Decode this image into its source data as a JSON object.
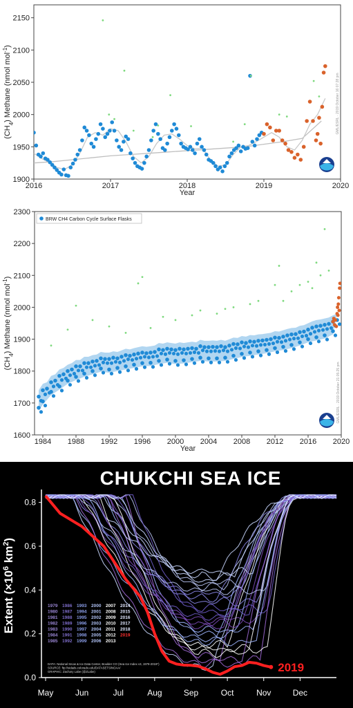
{
  "chart_data": [
    {
      "type": "scatter",
      "xlabel": "Year",
      "ylabel": "(CH4) Methane (nmol mol-1)",
      "ylabel_parts": {
        "pre": "(CH",
        "sub": "4",
        "mid": ") Methane (nmol mol",
        "sup": "-1",
        "post": ")"
      },
      "xlim": [
        2016,
        2020
      ],
      "ylim": [
        1900,
        2170
      ],
      "x_ticks": [
        "2016",
        "2017",
        "2018",
        "2019",
        "2020"
      ],
      "y_ticks": [
        "1900",
        "1950",
        "2000",
        "2050",
        "2100",
        "2150"
      ],
      "watermark": "GML/ESRL · 2019 October 16 07:28 pm",
      "series": [
        {
          "role": "flask_blue",
          "color": "#1f8ad6",
          "x": [
            2016.0,
            2016.03,
            2016.06,
            2016.09,
            2016.12,
            2016.15,
            2016.18,
            2016.21,
            2016.24,
            2016.27,
            2016.3,
            2016.33,
            2016.36,
            2016.39,
            2016.42,
            2016.45,
            2016.48,
            2016.51,
            2016.54,
            2016.57,
            2016.6,
            2016.63,
            2016.66,
            2016.69,
            2016.72,
            2016.75,
            2016.78,
            2016.81,
            2016.84,
            2016.87,
            2016.9,
            2016.93,
            2016.96,
            2016.99,
            2017.02,
            2017.05,
            2017.08,
            2017.11,
            2017.14,
            2017.17,
            2017.2,
            2017.23,
            2017.26,
            2017.29,
            2017.32,
            2017.35,
            2017.38,
            2017.41,
            2017.44,
            2017.47,
            2017.5,
            2017.53,
            2017.56,
            2017.59,
            2017.62,
            2017.65,
            2017.68,
            2017.71,
            2017.74,
            2017.77,
            2017.8,
            2017.83,
            2017.86,
            2017.89,
            2017.92,
            2017.95,
            2017.98,
            2018.01,
            2018.04,
            2018.07,
            2018.1,
            2018.13,
            2018.16,
            2018.19,
            2018.22,
            2018.25,
            2018.28,
            2018.31,
            2018.34,
            2018.37,
            2018.4,
            2018.43,
            2018.46,
            2018.49,
            2018.52,
            2018.55,
            2018.58,
            2018.61,
            2018.64,
            2018.67,
            2018.7,
            2018.73,
            2018.76,
            2018.79,
            2018.82,
            2018.85,
            2018.88,
            2018.91,
            2018.94,
            2018.97
          ],
          "y": [
            1972,
            1952,
            1938,
            1935,
            1940,
            1932,
            1930,
            1926,
            1922,
            1918,
            1914,
            1910,
            1907,
            1915,
            1906,
            1905,
            1918,
            1924,
            1930,
            1938,
            1945,
            1960,
            1980,
            1975,
            1968,
            1955,
            1950,
            1962,
            1970,
            1985,
            1978,
            1965,
            1970,
            1975,
            1988,
            1975,
            1960,
            1950,
            1945,
            1958,
            1966,
            1962,
            1940,
            1932,
            1925,
            1920,
            1918,
            1916,
            1925,
            1935,
            1945,
            1960,
            1975,
            1985,
            1970,
            1962,
            1948,
            1945,
            1955,
            1965,
            1975,
            1985,
            1978,
            1968,
            1955,
            1950,
            1948,
            1946,
            1950,
            1945,
            1940,
            1955,
            1962,
            1950,
            1945,
            1938,
            1930,
            1928,
            1925,
            1920,
            1915,
            1918,
            1912,
            1920,
            1925,
            1935,
            1940,
            1945,
            1948,
            1952,
            1943,
            1950,
            1947,
            1948,
            2060,
            1958,
            1952,
            1962,
            1968,
            1972
          ]
        },
        {
          "role": "outlier_green",
          "color": "#7fd97f",
          "x": [
            2016.9,
            2016.98,
            2017.05,
            2017.18,
            2017.3,
            2017.55,
            2017.62,
            2017.78,
            2018.05,
            2018.6,
            2018.75,
            2018.83,
            2019.2,
            2019.3,
            2019.65,
            2019.72
          ],
          "y": [
            2146,
            2000,
            1993,
            2068,
            1975,
            1965,
            1983,
            2030,
            1982,
            1958,
            1985,
            2060,
            2000,
            1997,
            2052,
            2028
          ]
        },
        {
          "role": "recent_orange",
          "color": "#d9622b",
          "x": [
            2019.0,
            2019.04,
            2019.08,
            2019.12,
            2019.16,
            2019.2,
            2019.24,
            2019.28,
            2019.32,
            2019.36,
            2019.4,
            2019.44,
            2019.48,
            2019.52,
            2019.56,
            2019.6,
            2019.64,
            2019.68,
            2019.7,
            2019.72,
            2019.74,
            2019.76,
            2019.78,
            2019.8
          ],
          "y": [
            1970,
            1985,
            1980,
            1960,
            1975,
            1975,
            1960,
            1955,
            1945,
            1942,
            1933,
            1938,
            1930,
            1950,
            1990,
            2020,
            1990,
            1960,
            1970,
            1995,
            1955,
            2012,
            2065,
            2075
          ]
        },
        {
          "role": "trend_line",
          "color": "#bfbfbf",
          "x": [
            2016,
            2016.25,
            2016.5,
            2016.75,
            2017,
            2017.25,
            2017.5,
            2017.75,
            2018,
            2018.25,
            2018.5,
            2018.75,
            2019,
            2019.25,
            2019.5,
            2019.75
          ],
          "y": [
            1925,
            1927,
            1930,
            1933,
            1936,
            1938,
            1940,
            1942,
            1944,
            1946,
            1948,
            1950,
            1954,
            1958,
            1963,
            1990
          ]
        },
        {
          "role": "smooth_fit",
          "color": "#c8c8c8",
          "x": [
            2016,
            2016.1,
            2016.2,
            2016.3,
            2016.4,
            2016.5,
            2016.6,
            2016.7,
            2016.8,
            2016.9,
            2017,
            2017.1,
            2017.2,
            2017.3,
            2017.4,
            2017.5,
            2017.6,
            2017.7,
            2017.8,
            2017.9,
            2018,
            2018.1,
            2018.2,
            2018.3,
            2018.4,
            2018.5,
            2018.6,
            2018.7,
            2018.8,
            2018.9,
            2019,
            2019.1,
            2019.2,
            2019.3,
            2019.4,
            2019.5,
            2019.6,
            2019.7,
            2019.8
          ],
          "y": [
            1940,
            1932,
            1926,
            1918,
            1915,
            1922,
            1940,
            1965,
            1972,
            1968,
            1978,
            1975,
            1958,
            1935,
            1925,
            1935,
            1955,
            1968,
            1970,
            1962,
            1952,
            1947,
            1948,
            1930,
            1920,
            1922,
            1938,
            1950,
            1952,
            1958,
            1965,
            1972,
            1965,
            1950,
            1945,
            1960,
            1985,
            2000,
            2025
          ]
        }
      ]
    },
    {
      "type": "scatter",
      "xlabel": "Year",
      "ylabel": "(CH4) Methane (nmol mol-1)",
      "ylabel_parts": {
        "pre": "(CH",
        "sub": "4",
        "mid": ") Methane (nmol mol",
        "sup": "-1",
        "post": ")"
      },
      "legend": "BRW CH4 Carbon Cycle Surface Flasks",
      "legend_placement": "top-left",
      "xlim": [
        1983,
        2020
      ],
      "ylim": [
        1600,
        2300
      ],
      "x_ticks": [
        "1984",
        "1988",
        "1992",
        "1996",
        "2000",
        "2004",
        "2008",
        "2012",
        "2016",
        "2020"
      ],
      "y_ticks": [
        "1600",
        "1700",
        "1800",
        "1900",
        "2000",
        "2100",
        "2200",
        "2300"
      ],
      "watermark": "GML/ESRL · 2019 October 21 05:25 pm",
      "series": [
        {
          "role": "flask_blue",
          "color": "#1f8ad6",
          "x": [
            1983.5,
            1984,
            1984.5,
            1985,
            1985.5,
            1986,
            1986.5,
            1987,
            1987.5,
            1988,
            1988.5,
            1989,
            1989.5,
            1990,
            1990.5,
            1991,
            1991.5,
            1992,
            1992.5,
            1993,
            1993.5,
            1994,
            1994.5,
            1995,
            1995.5,
            1996,
            1996.5,
            1997,
            1997.5,
            1998,
            1998.5,
            1999,
            1999.5,
            2000,
            2000.5,
            2001,
            2001.5,
            2002,
            2002.5,
            2003,
            2003.5,
            2004,
            2004.5,
            2005,
            2005.5,
            2006,
            2006.5,
            2007,
            2007.5,
            2008,
            2008.5,
            2009,
            2009.5,
            2010,
            2010.5,
            2011,
            2011.5,
            2012,
            2012.5,
            2013,
            2013.5,
            2014,
            2014.5,
            2015,
            2015.5,
            2016,
            2016.5,
            2017,
            2017.5,
            2018,
            2018.5,
            2019,
            2019.5
          ],
          "y": [
            1720,
            1740,
            1745,
            1765,
            1770,
            1785,
            1790,
            1800,
            1805,
            1815,
            1815,
            1825,
            1825,
            1830,
            1832,
            1840,
            1838,
            1838,
            1842,
            1840,
            1845,
            1850,
            1848,
            1852,
            1855,
            1858,
            1856,
            1858,
            1860,
            1868,
            1866,
            1870,
            1868,
            1866,
            1870,
            1868,
            1870,
            1872,
            1870,
            1878,
            1875,
            1875,
            1876,
            1875,
            1878,
            1875,
            1880,
            1885,
            1884,
            1890,
            1888,
            1893,
            1892,
            1895,
            1896,
            1898,
            1900,
            1905,
            1904,
            1908,
            1912,
            1915,
            1916,
            1922,
            1924,
            1930,
            1936,
            1940,
            1942,
            1945,
            1948,
            1955,
            1960
          ]
        },
        {
          "role": "flask_blue_low",
          "color": "#1f8ad6",
          "x": [
            1983.5,
            1984,
            1985,
            1986,
            1987,
            1988,
            1989,
            1990,
            1991,
            1992,
            1993,
            1994,
            1995,
            1996,
            1997,
            1998,
            1999,
            2000,
            2001,
            2002,
            2003,
            2004,
            2005,
            2006,
            2007,
            2008,
            2009,
            2010,
            2011,
            2012,
            2013,
            2014,
            2015,
            2016,
            2017,
            2018,
            2019
          ],
          "y": [
            1685,
            1705,
            1735,
            1752,
            1770,
            1782,
            1792,
            1800,
            1808,
            1805,
            1810,
            1815,
            1820,
            1825,
            1826,
            1832,
            1836,
            1832,
            1834,
            1838,
            1842,
            1840,
            1840,
            1842,
            1848,
            1854,
            1858,
            1862,
            1866,
            1872,
            1876,
            1882,
            1890,
            1900,
            1906,
            1912,
            1925
          ]
        },
        {
          "role": "outlier_green",
          "color": "#7fd97f",
          "x": [
            1985,
            1987,
            1988,
            1990,
            1992,
            1994,
            1995.5,
            1996,
            1997,
            1998.5,
            2000,
            2002,
            2003,
            2005,
            2006,
            2007,
            2009,
            2010,
            2012,
            2012.5,
            2013,
            2014,
            2015,
            2016,
            2016.5,
            2017,
            2017.5,
            2018,
            2018.5
          ],
          "y": [
            1880,
            1930,
            2005,
            1960,
            1940,
            1920,
            2075,
            2095,
            1935,
            1970,
            1960,
            1975,
            1990,
            1980,
            1995,
            2000,
            2010,
            2020,
            2070,
            2130,
            2020,
            2050,
            2070,
            2080,
            2060,
            2140,
            2100,
            2245,
            2115
          ]
        },
        {
          "role": "recent_orange",
          "color": "#d9622b",
          "x": [
            2019.0,
            2019.1,
            2019.2,
            2019.3,
            2019.4,
            2019.5,
            2019.55,
            2019.6,
            2019.65,
            2019.7,
            2019.75,
            2019.8,
            2019.85
          ],
          "y": [
            1955,
            1965,
            1945,
            1960,
            1940,
            1980,
            2000,
            1975,
            2010,
            2030,
            1990,
            2060,
            2075
          ]
        }
      ]
    },
    {
      "type": "line",
      "title": "CHUKCHI SEA ICE",
      "ylabel": "Extent (×10^6 km^2)",
      "ylabel_parts": {
        "pre": "Extent (×10",
        "sup1": "6",
        "mid": " km",
        "sup2": "2",
        "post": ")"
      },
      "x_ticks": [
        "May",
        "Jun",
        "Jul",
        "Aug",
        "Sep",
        "Oct",
        "Nov",
        "Dec"
      ],
      "y_ticks": [
        "0.0",
        "0.2",
        "0.4",
        "0.6",
        "0.8"
      ],
      "xlim": [
        0,
        8
      ],
      "ylim": [
        0,
        0.84
      ],
      "highlight_label": "2019",
      "highlight_color": "#ff2020",
      "legend_years": [
        [
          "1979",
          "1986",
          "1993",
          "2000",
          "2007",
          "2014"
        ],
        [
          "1980",
          "1987",
          "1994",
          "2001",
          "2008",
          "2015"
        ],
        [
          "1981",
          "1988",
          "1995",
          "2002",
          "2009",
          "2016"
        ],
        [
          "1982",
          "1989",
          "1996",
          "2003",
          "2010",
          "2017"
        ],
        [
          "1983",
          "1990",
          "1997",
          "2004",
          "2011",
          "2018"
        ],
        [
          "1984",
          "1991",
          "1998",
          "2005",
          "2012",
          "2019"
        ],
        [
          "1985",
          "1992",
          "1999",
          "2006",
          "2013",
          ""
        ]
      ],
      "credits": [
        "DATA: National Snow & Ice Data Center, Boulder CO (Sea Ice Index v3, 1979-2019*)",
        "SOURCE: ftp://sidads.colorado.edu/DATASETS/NOAA/",
        "GRAPHIC: Zachary Labe (@ZLabe)"
      ],
      "series": [
        {
          "name": "2019",
          "color": "#ff2020",
          "x": [
            0,
            0.2,
            0.4,
            0.6,
            0.8,
            1.0,
            1.2,
            1.4,
            1.6,
            1.8,
            2.0,
            2.2,
            2.4,
            2.6,
            2.8,
            3.0,
            3.2,
            3.4,
            3.6,
            3.8,
            4.0,
            4.2,
            4.4,
            4.6,
            4.8,
            5.0,
            5.2,
            5.4,
            5.6,
            5.8,
            6.0,
            6.2
          ],
          "y": [
            0.83,
            0.79,
            0.75,
            0.73,
            0.71,
            0.69,
            0.66,
            0.63,
            0.6,
            0.55,
            0.5,
            0.45,
            0.41,
            0.37,
            0.3,
            0.2,
            0.12,
            0.075,
            0.062,
            0.057,
            0.056,
            0.052,
            0.04,
            0.024,
            0.015,
            0.03,
            0.05,
            0.055,
            0.07,
            0.066,
            0.055,
            0.048
          ]
        }
      ]
    }
  ]
}
